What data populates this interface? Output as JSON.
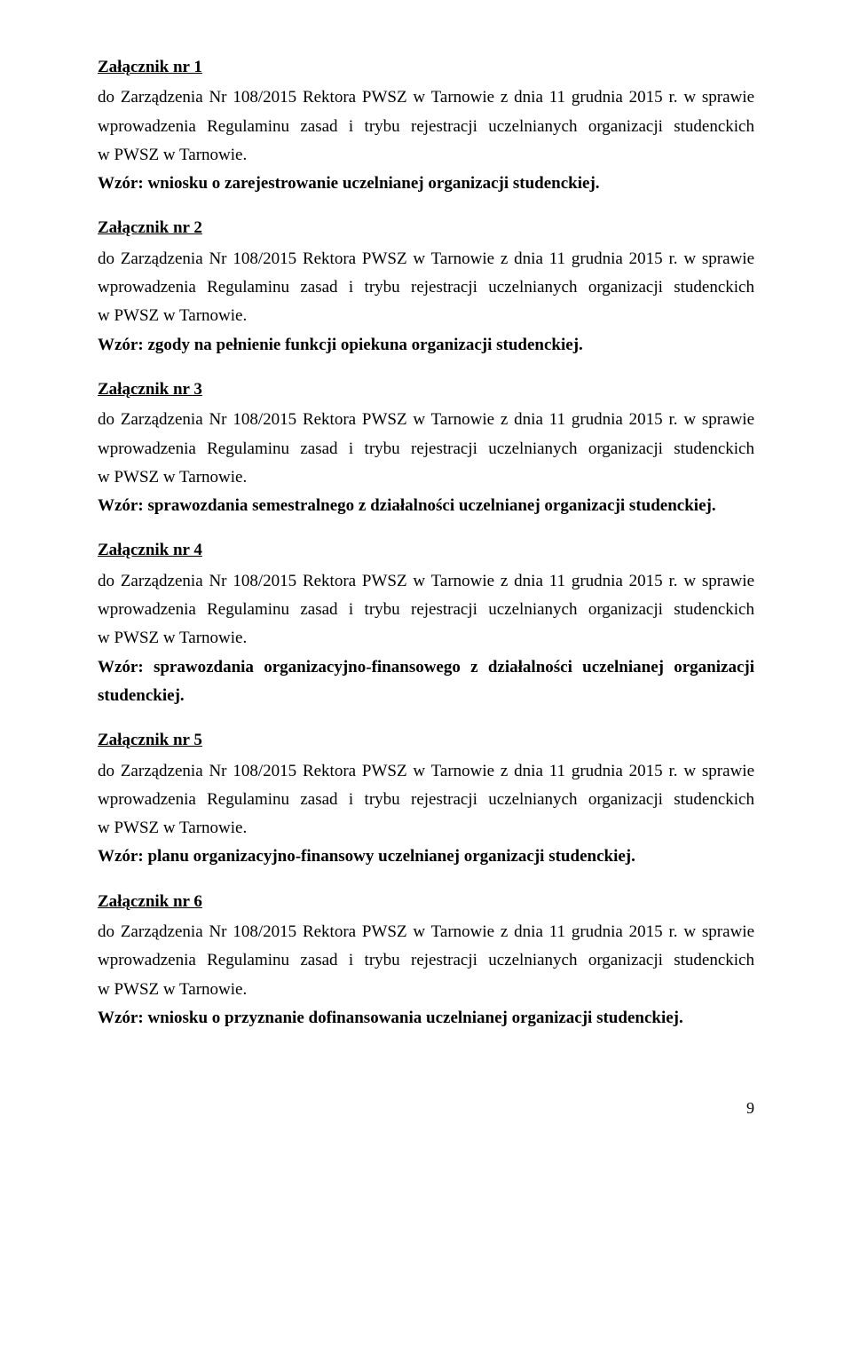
{
  "page_number": "9",
  "zarzadzenie_line": "do Zarządzenia Nr 108/2015 Rektora PWSZ w Tarnowie z dnia 11 grudnia 2015 r. w sprawie wprowadzenia Regulaminu zasad i trybu rejestracji uczelnianych organizacji studenckich w PWSZ w Tarnowie.",
  "zalaczniki": [
    {
      "header": "Załącznik nr 1",
      "wzor": "Wzór: wniosku o zarejestrowanie uczelnianej organizacji studenckiej."
    },
    {
      "header": "Załącznik nr 2",
      "wzor": "Wzór: zgody na pełnienie funkcji opiekuna organizacji studenckiej."
    },
    {
      "header": "Załącznik nr 3",
      "wzor": "Wzór: sprawozdania semestralnego z działalności uczelnianej organizacji studenckiej."
    },
    {
      "header": "Załącznik nr 4",
      "wzor": "Wzór: sprawozdania organizacyjno-finansowego z działalności uczelnianej organizacji studenckiej."
    },
    {
      "header": "Załącznik nr 5",
      "wzor": "Wzór: planu organizacyjno-finansowy uczelnianej organizacji studenckiej."
    },
    {
      "header": "Załącznik nr 6",
      "wzor": "Wzór: wniosku o przyznanie dofinansowania uczelnianej organizacji studenckiej."
    }
  ]
}
